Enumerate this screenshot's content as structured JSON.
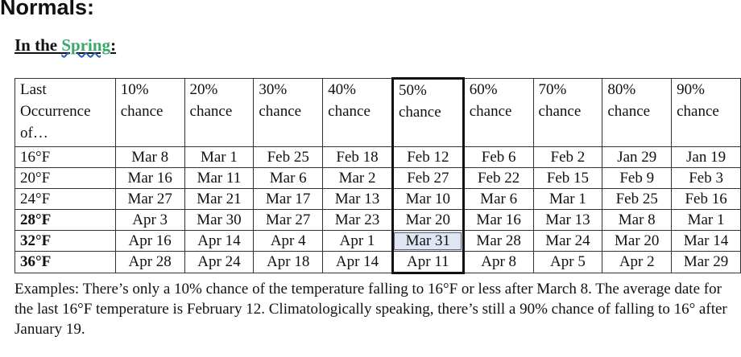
{
  "title": "Normals:",
  "subtitle": {
    "pre": "In the ",
    "link": "Spring",
    "post": ":"
  },
  "table": {
    "header": [
      "Last Occurrence of…",
      "10% chance",
      "20% chance",
      "30% chance",
      "40% chance",
      "50% chance",
      "60% chance",
      "70% chance",
      "80% chance",
      "90% chance"
    ],
    "rows": [
      {
        "temp": "16°F",
        "bold": false,
        "dates": [
          "Mar 8",
          "Mar 1",
          "Feb 25",
          "Feb 18",
          "Feb 12",
          "Feb 6",
          "Feb 2",
          "Jan 29",
          "Jan 19"
        ]
      },
      {
        "temp": "20°F",
        "bold": false,
        "dates": [
          "Mar 16",
          "Mar 11",
          "Mar 6",
          "Mar 2",
          "Feb 27",
          "Feb 22",
          "Feb 15",
          "Feb 9",
          "Feb 3"
        ]
      },
      {
        "temp": "24°F",
        "bold": false,
        "dates": [
          "Mar 27",
          "Mar 21",
          "Mar 17",
          "Mar 13",
          "Mar 10",
          "Mar 6",
          "Mar 1",
          "Feb 25",
          "Feb 16"
        ]
      },
      {
        "temp": "28°F",
        "bold": true,
        "dates": [
          "Apr 3",
          "Mar 30",
          "Mar 27",
          "Mar 23",
          "Mar 20",
          "Mar 16",
          "Mar 13",
          "Mar 8",
          "Mar 1"
        ]
      },
      {
        "temp": "32°F",
        "bold": true,
        "dates": [
          "Apr 16",
          "Apr 14",
          "Apr 4",
          "Apr 1",
          "Mar 31",
          "Mar 28",
          "Mar 24",
          "Mar 20",
          "Mar 14"
        ]
      },
      {
        "temp": "36°F",
        "bold": true,
        "dates": [
          "Apr 28",
          "Apr 24",
          "Apr 18",
          "Apr 14",
          "Apr 11",
          "Apr 8",
          "Apr 5",
          "Apr 2",
          "Mar 29"
        ]
      }
    ],
    "highlight_color": "#dde6f2"
  },
  "examples": "Examples:  There’s only a 10% chance of the temperature falling to 16°F or less after March 8. The average date for the last 16°F temperature is February 12.  Climatologically speaking, there’s still a 90% chance of falling to 16° after January 19."
}
